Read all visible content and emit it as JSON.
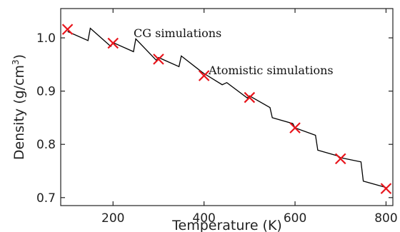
{
  "chart_data": {
    "type": "line",
    "title": "",
    "xlabel": "Temperature (K)",
    "ylabel_main": "Density (g/cm",
    "ylabel_sup": "3",
    "ylabel_close": ")",
    "xlim": [
      85,
      815
    ],
    "ylim": [
      0.685,
      1.055
    ],
    "grid": false,
    "xticks": [
      200,
      400,
      600,
      800
    ],
    "yticks": [
      0.7,
      0.8,
      0.9,
      1.0
    ],
    "xtick_labels": [
      "200",
      "400",
      "600",
      "800"
    ],
    "ytick_labels": [
      "0.7",
      "0.8",
      "0.9",
      "1.0"
    ],
    "series": [
      {
        "name": "CG simulations",
        "style": "line",
        "color": "#000000",
        "x": [
          100,
          145,
          150,
          195,
          200,
          245,
          250,
          295,
          300,
          345,
          350,
          395,
          400,
          440,
          450,
          495,
          500,
          545,
          550,
          595,
          600,
          645,
          650,
          695,
          700,
          745,
          750,
          800
        ],
        "y": [
          1.012,
          0.995,
          1.018,
          0.984,
          0.991,
          0.974,
          0.998,
          0.958,
          0.963,
          0.946,
          0.966,
          0.936,
          0.933,
          0.912,
          0.916,
          0.887,
          0.891,
          0.869,
          0.85,
          0.839,
          0.831,
          0.817,
          0.789,
          0.778,
          0.775,
          0.767,
          0.731,
          0.719
        ]
      },
      {
        "name": "Atomistic simulations",
        "style": "marker-x",
        "color": "#e8141b",
        "x": [
          100,
          200,
          300,
          400,
          500,
          600,
          700,
          800
        ],
        "y": [
          1.016,
          0.99,
          0.96,
          0.929,
          0.888,
          0.831,
          0.773,
          0.717
        ]
      }
    ],
    "annotations": [
      "CG simulations",
      "Atomistic simulations"
    ]
  }
}
